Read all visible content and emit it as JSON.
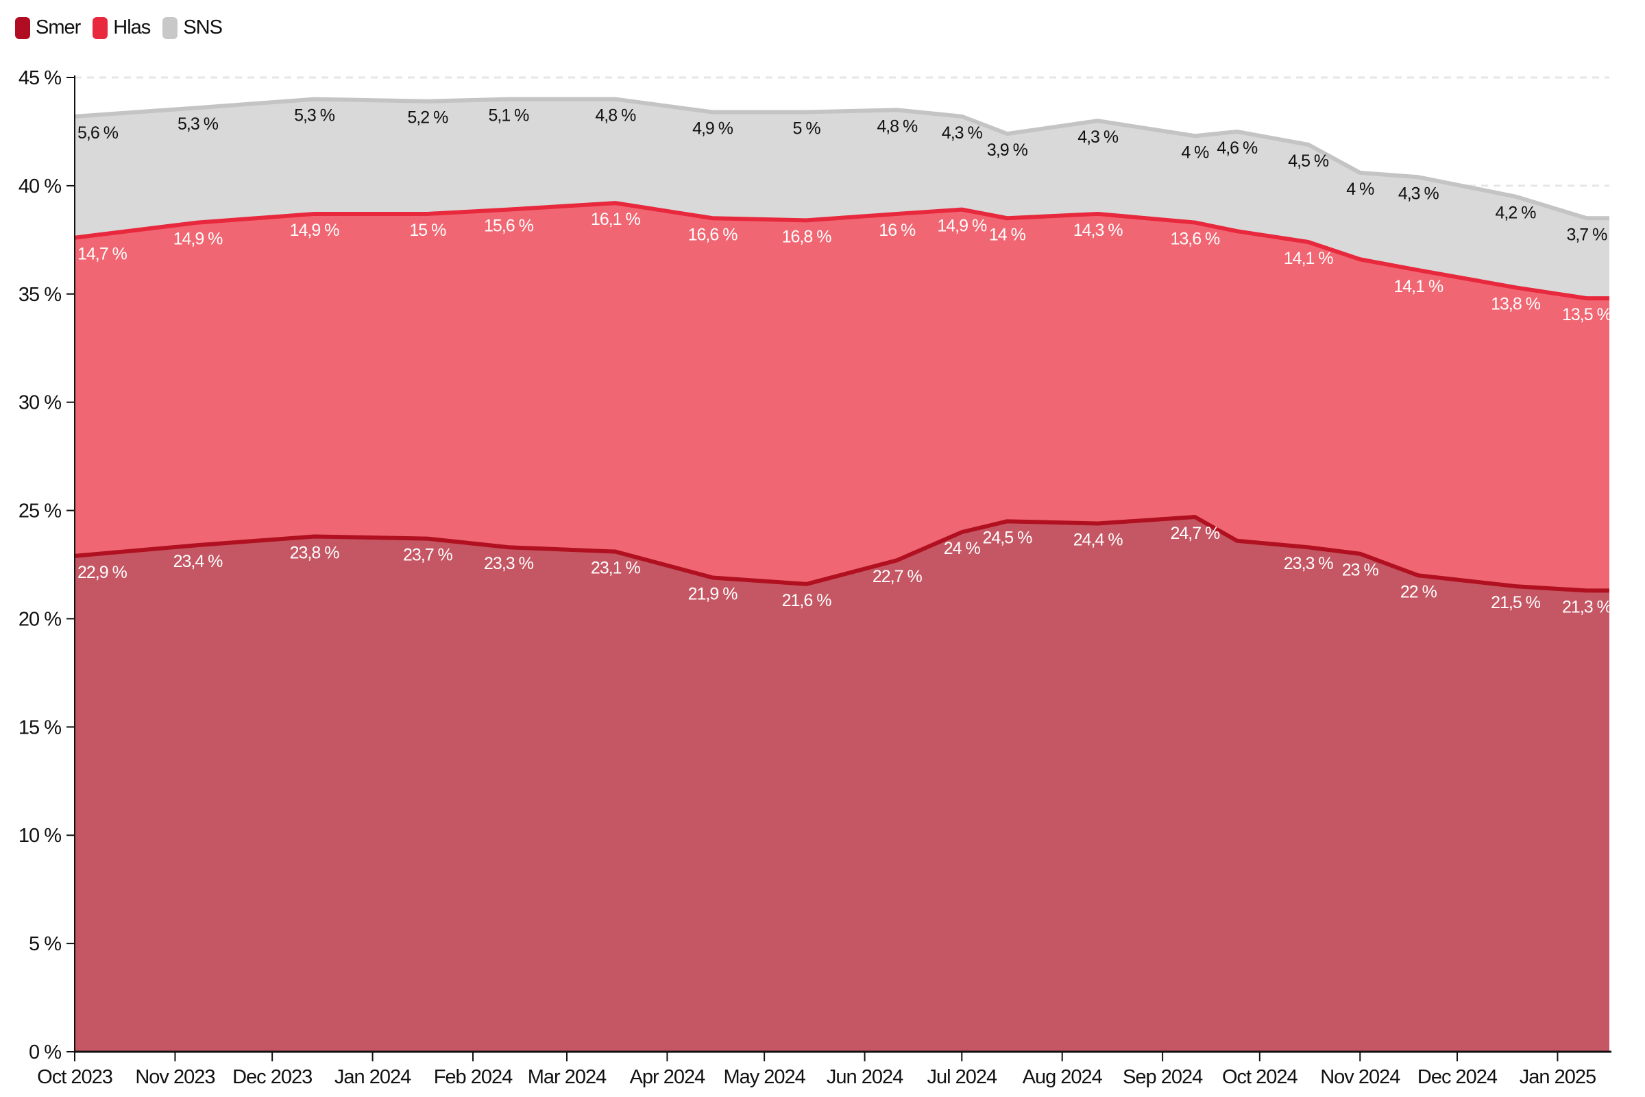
{
  "chart_data": {
    "type": "area",
    "stacked": true,
    "title": "",
    "xlabel": "",
    "ylabel": "",
    "ylim": [
      0,
      45
    ],
    "xlim": [
      "2023-10-01",
      "2025-01-17"
    ],
    "y_ticks": [
      "0 %",
      "5 %",
      "10 %",
      "15 %",
      "20 %",
      "25 %",
      "30 %",
      "35 %",
      "40 %",
      "45 %"
    ],
    "x_ticks": [
      {
        "date": "2023-10-01",
        "label": "Oct 2023"
      },
      {
        "date": "2023-11-01",
        "label": "Nov 2023"
      },
      {
        "date": "2023-12-01",
        "label": "Dec 2023"
      },
      {
        "date": "2024-01-01",
        "label": "Jan 2024"
      },
      {
        "date": "2024-02-01",
        "label": "Feb 2024"
      },
      {
        "date": "2024-03-01",
        "label": "Mar 2024"
      },
      {
        "date": "2024-04-01",
        "label": "Apr 2024"
      },
      {
        "date": "2024-05-01",
        "label": "May 2024"
      },
      {
        "date": "2024-06-01",
        "label": "Jun 2024"
      },
      {
        "date": "2024-07-01",
        "label": "Jul 2024"
      },
      {
        "date": "2024-08-01",
        "label": "Aug 2024"
      },
      {
        "date": "2024-09-01",
        "label": "Sep 2024"
      },
      {
        "date": "2024-10-01",
        "label": "Oct 2024"
      },
      {
        "date": "2024-11-01",
        "label": "Nov 2024"
      },
      {
        "date": "2024-12-01",
        "label": "Dec 2024"
      },
      {
        "date": "2025-01-01",
        "label": "Jan 2025"
      }
    ],
    "grid": "horizontal dashed",
    "legend_position": "top-left",
    "legend": [
      "Smer",
      "Hlas",
      "SNS"
    ],
    "dates": [
      "2023-10-01",
      "2023-11-08",
      "2023-12-14",
      "2024-01-18",
      "2024-02-12",
      "2024-03-16",
      "2024-04-15",
      "2024-05-14",
      "2024-06-11",
      "2024-07-01",
      "2024-07-15",
      "2024-08-12",
      "2024-09-11",
      "2024-09-24",
      "2024-10-16",
      "2024-11-01",
      "2024-11-19",
      "2024-12-19",
      "2025-01-10",
      "2025-01-17"
    ],
    "series": [
      {
        "name": "Smer",
        "color": "#b0101f",
        "fill": "#c55764",
        "label_color": "#ffffff",
        "values": [
          22.9,
          23.4,
          23.8,
          23.7,
          23.3,
          23.1,
          21.9,
          21.6,
          22.7,
          24,
          24.5,
          24.4,
          24.7,
          23.6,
          23.3,
          23,
          22,
          21.5,
          21.3,
          21.3
        ],
        "labels": [
          "22,9 %",
          "23,4 %",
          "23,8 %",
          "23,7 %",
          "23,3 %",
          "23,1 %",
          "21,9 %",
          "21,6 %",
          "22,7 %",
          "24 %",
          "24,5 %",
          "24,4 %",
          "24,7 %",
          null,
          "23,3 %",
          "23 %",
          "22 %",
          "21,5 %",
          "21,3 %",
          null
        ]
      },
      {
        "name": "Hlas",
        "color": "#e8283c",
        "fill": "#f06773",
        "label_color": "#ffffff",
        "values": [
          14.7,
          14.9,
          14.9,
          15,
          15.6,
          16.1,
          16.6,
          16.8,
          16,
          14.9,
          14,
          14.3,
          13.6,
          14.3,
          14.1,
          13.6,
          14.1,
          13.8,
          13.5,
          13.5
        ],
        "labels": [
          "14,7 %",
          "14,9 %",
          "14,9 %",
          "15 %",
          "15,6 %",
          "16,1 %",
          "16,6 %",
          "16,8 %",
          "16 %",
          "14,9 %",
          "14 %",
          "14,3 %",
          "13,6 %",
          null,
          "14,1 %",
          null,
          "14,1 %",
          "13,8 %",
          "13,5 %",
          null
        ]
      },
      {
        "name": "SNS",
        "color": "#c4c4c4",
        "fill": "#d9d9d9",
        "label_color": "#111111",
        "values": [
          5.6,
          5.3,
          5.3,
          5.2,
          5.1,
          4.8,
          4.9,
          5,
          4.8,
          4.3,
          3.9,
          4.3,
          4,
          4.6,
          4.5,
          4,
          4.3,
          4.2,
          3.7,
          3.7
        ],
        "labels": [
          "5,6 %",
          "5,3 %",
          "5,3 %",
          "5,2 %",
          "5,1 %",
          "4,8 %",
          "4,9 %",
          "5 %",
          "4,8 %",
          "4,3 %",
          "3,9 %",
          "4,3 %",
          "4 %",
          "4,6 %",
          "4,5 %",
          "4 %",
          "4,3 %",
          "4,2 %",
          "3,7 %",
          null
        ]
      }
    ]
  },
  "legend_swatches": {
    "Smer": "#b00d23",
    "Hlas": "#e8283c",
    "SNS": "#c8c8c8"
  }
}
